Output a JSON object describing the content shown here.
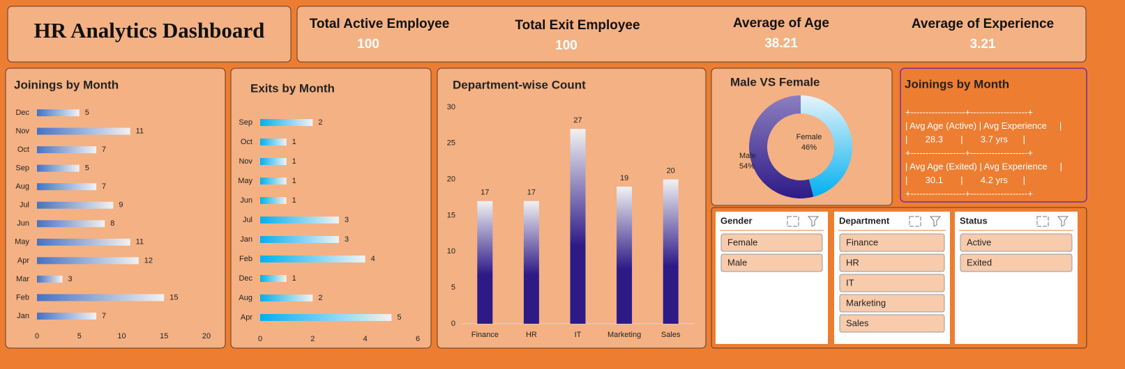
{
  "header": {
    "title": "HR Analytics Dashboard"
  },
  "kpis": [
    {
      "label": "Total Active Employee",
      "value": 100
    },
    {
      "label": "Total Exit Employee",
      "value": 100
    },
    {
      "label": "Average of Age",
      "value": 38.21
    },
    {
      "label": "Average of Experience",
      "value": 3.21
    }
  ],
  "chart_data": [
    {
      "type": "barh",
      "title": "Joinings by Month",
      "categories": [
        "Dec",
        "Nov",
        "Oct",
        "Sep",
        "Aug",
        "Jul",
        "Jun",
        "May",
        "Apr",
        "Mar",
        "Feb",
        "Jan"
      ],
      "values": [
        5,
        11,
        7,
        5,
        7,
        9,
        8,
        11,
        12,
        3,
        15,
        7
      ],
      "color": "#4472C4",
      "xlim": [
        0,
        20
      ],
      "xticks": [
        0,
        5,
        10,
        15,
        20
      ]
    },
    {
      "type": "barh",
      "title": "Exits by Month",
      "categories": [
        "Sep",
        "Oct",
        "Nov",
        "May",
        "Jun",
        "Jul",
        "Jan",
        "Feb",
        "Dec",
        "Aug",
        "Apr"
      ],
      "values": [
        2,
        1,
        1,
        1,
        1,
        3,
        3,
        4,
        1,
        2,
        5
      ],
      "color": "#00B0F0",
      "xlim": [
        0,
        6
      ],
      "xticks": [
        0,
        2,
        4,
        6
      ]
    },
    {
      "type": "bar",
      "title": "Department-wise Count",
      "categories": [
        "Finance",
        "HR",
        "IT",
        "Marketing",
        "Sales"
      ],
      "values": [
        17,
        17,
        27,
        19,
        20
      ],
      "color": "#2E1A87",
      "ylim": [
        0,
        30
      ],
      "yticks": [
        0,
        5,
        10,
        15,
        20,
        25,
        30
      ]
    },
    {
      "type": "donut",
      "title": "Male VS Female",
      "categories": [
        "Female",
        "Male"
      ],
      "values": [
        46,
        54
      ],
      "value_labels": [
        "46%",
        "54%"
      ],
      "colors": [
        "#00B0F0",
        "#2E1A87"
      ]
    }
  ],
  "info_panel": {
    "title": "Joinings by Month",
    "lines": [
      "+------------------+-------------------+",
      "| Avg Age (Active) | Avg Experience     |",
      "|       28.3       |       3.7 yrs      |",
      "+------------------+-------------------+",
      "| Avg Age (Exited) | Avg Experience     |",
      "|       30.1       |       4.2 yrs      |",
      "+------------------+-------------------+"
    ]
  },
  "slicers": [
    {
      "title": "Gender",
      "items": [
        "Female",
        "Male"
      ]
    },
    {
      "title": "Department",
      "items": [
        "Finance",
        "HR",
        "IT",
        "Marketing",
        "Sales"
      ]
    },
    {
      "title": "Status",
      "items": [
        "Active",
        "Exited"
      ]
    }
  ]
}
